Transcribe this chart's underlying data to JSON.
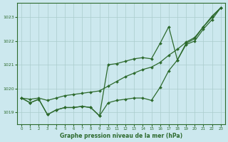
{
  "xlabel": "Graphe pression niveau de la mer (hPa)",
  "background_color": "#cce8ee",
  "grid_color": "#aacccc",
  "line_color": "#2d6a2d",
  "ylim": [
    1018.5,
    1023.6
  ],
  "xlim": [
    -0.5,
    23.5
  ],
  "yticks": [
    1019,
    1020,
    1021,
    1022,
    1023
  ],
  "xticks": [
    0,
    1,
    2,
    3,
    4,
    5,
    6,
    7,
    8,
    9,
    10,
    11,
    12,
    13,
    14,
    15,
    16,
    17,
    18,
    19,
    20,
    21,
    22,
    23
  ],
  "x": [
    0,
    1,
    2,
    3,
    4,
    5,
    6,
    7,
    8,
    9,
    10,
    11,
    12,
    13,
    14,
    15,
    16,
    17,
    18,
    19,
    20,
    21,
    22,
    23
  ],
  "s1": [
    1019.6,
    1019.4,
    1019.55,
    1018.9,
    1019.1,
    1019.2,
    1019.2,
    1019.25,
    1019.2,
    1018.85,
    1019.4,
    1019.5,
    1019.55,
    1019.6,
    1019.6,
    1019.5,
    1020.05,
    1020.75,
    1021.2,
    1021.9,
    1022.1,
    1022.6,
    1023.0,
    1023.4
  ],
  "s2": [
    1019.6,
    1019.55,
    1019.6,
    1019.5,
    1019.6,
    1019.7,
    1019.75,
    1019.8,
    1019.85,
    1019.9,
    1020.1,
    1020.3,
    1020.5,
    1020.65,
    1020.8,
    1020.9,
    1021.1,
    1021.4,
    1021.65,
    1021.95,
    1022.15,
    1022.6,
    1023.05,
    1023.4
  ],
  "s3": [
    1019.6,
    1019.4,
    1019.55,
    1018.9,
    1019.1,
    1019.2,
    1019.2,
    1019.25,
    1019.2,
    1018.85,
    1021.0,
    1021.05,
    1021.15,
    1021.25,
    1021.3,
    1021.25,
    1021.9,
    1022.6,
    1021.2,
    1021.85,
    1022.0,
    1022.5,
    1022.9,
    1023.4
  ]
}
